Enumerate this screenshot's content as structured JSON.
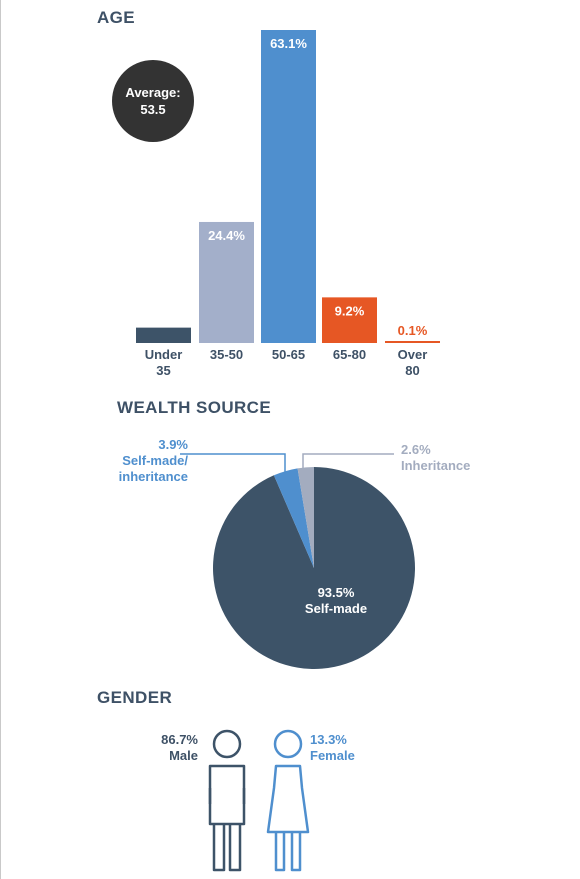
{
  "sections": {
    "age_title": "AGE",
    "wealth_title": "WEALTH SOURCE",
    "gender_title": "GENDER"
  },
  "average": {
    "label": "Average:",
    "value": "53.5"
  },
  "colors": {
    "dark_navy": "#3d5368",
    "lavender": "#a3afca",
    "blue": "#4f8fce",
    "orange": "#e65724",
    "grey_blue": "#a3acbf",
    "text": "#3e5166",
    "female_blue": "#4f8fce"
  },
  "chart_data": [
    {
      "type": "bar",
      "title": "AGE",
      "categories": [
        "Under 35",
        "35-50",
        "50-65",
        "65-80",
        "Over 80"
      ],
      "category_lines": [
        [
          "Under",
          "35"
        ],
        [
          "35-50"
        ],
        [
          "50-65"
        ],
        [
          "65-80"
        ],
        [
          "Over",
          "80"
        ]
      ],
      "values": [
        3.1,
        24.4,
        63.1,
        9.2,
        0.1
      ],
      "value_labels": [
        "3.1%",
        "24.4%",
        "63.1%",
        "9.2%",
        "0.1%"
      ],
      "bar_colors": [
        "#3d5368",
        "#a3afca",
        "#4f8fce",
        "#e65724",
        "#e65724"
      ],
      "label_colors": [
        "#ffffff",
        "#ffffff",
        "#ffffff",
        "#ffffff",
        "#e65724"
      ],
      "ylim": [
        0,
        63.1
      ],
      "grid": false
    },
    {
      "type": "pie",
      "title": "WEALTH SOURCE",
      "slices": [
        {
          "label": "Self-made",
          "value": 93.5,
          "value_label": "93.5%",
          "color": "#3d5368"
        },
        {
          "label": "Self-made/ inheritance",
          "value": 3.9,
          "value_label": "3.9%",
          "color": "#4f8fce"
        },
        {
          "label": "Inheritance",
          "value": 2.6,
          "value_label": "2.6%",
          "color": "#a3acbf"
        }
      ]
    },
    {
      "type": "pie",
      "title": "GENDER",
      "slices": [
        {
          "label": "Male",
          "value": 86.7,
          "value_label": "86.7%",
          "color": "#3d5368"
        },
        {
          "label": "Female",
          "value": 13.3,
          "value_label": "13.3%",
          "color": "#4f8fce"
        }
      ]
    }
  ]
}
